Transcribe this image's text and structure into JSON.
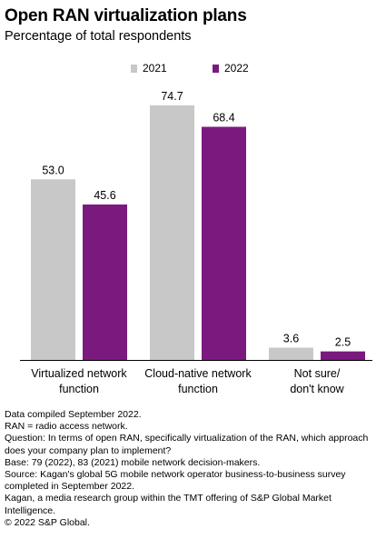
{
  "title": "Open RAN virtualization plans",
  "subtitle": "Percentage of total respondents",
  "colors": {
    "s2021": "#c8c8c8",
    "s2022": "#7a1a7f"
  },
  "chart_data": {
    "type": "bar",
    "title": "Open RAN virtualization plans",
    "subtitle": "Percentage of total respondents",
    "categories": [
      "Virtualized network function",
      "Cloud-native network function",
      "Not sure/ don't know"
    ],
    "category_lines": [
      [
        "Virtualized network",
        "function"
      ],
      [
        "Cloud-native network",
        "function"
      ],
      [
        "Not sure/",
        "don't know"
      ]
    ],
    "series": [
      {
        "name": "2021",
        "values": [
          53.0,
          74.7,
          3.6
        ]
      },
      {
        "name": "2022",
        "values": [
          45.6,
          68.4,
          2.5
        ]
      }
    ],
    "value_labels": [
      [
        "53.0",
        "74.7",
        "3.6"
      ],
      [
        "45.6",
        "68.4",
        "2.5"
      ]
    ],
    "ylim": [
      0,
      80
    ],
    "grid": false,
    "legend": "top-center"
  },
  "notes": [
    "Data compiled September 2022.",
    "RAN = radio access network.",
    "Question: In terms of open RAN, specifically virtualization of the RAN, which approach does your company plan to implement?",
    "Base: 79 (2022), 83 (2021) mobile network decision-makers.",
    "Source: Kagan's global 5G mobile network operator business-to-business survey completed in September 2022.",
    "Kagan, a media research group within the TMT offering of S&P Global Market Intelligence.",
    "© 2022 S&P Global."
  ]
}
